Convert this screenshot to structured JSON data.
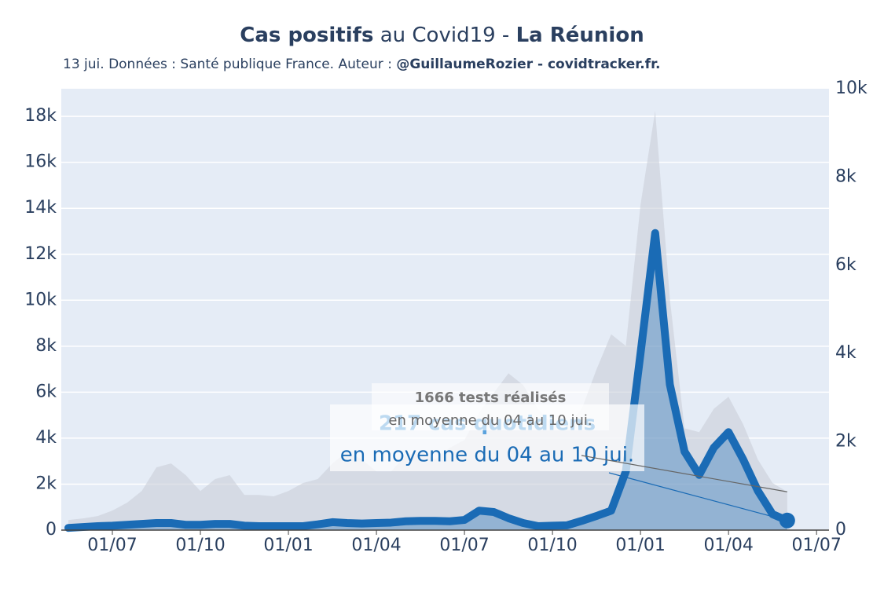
{
  "chart_data": {
    "type": "line",
    "title": [
      "Cas positifs",
      "au Covid19 -",
      "La Réunion"
    ],
    "subtitle": [
      "13 jui. Données : Santé publique France. Auteur :",
      "@GuillaumeRozier - covidtracker.fr."
    ],
    "categories": [
      null,
      null,
      null,
      "01/07",
      null,
      null,
      null,
      null,
      null,
      "01/10",
      null,
      null,
      null,
      null,
      null,
      "01/01",
      null,
      null,
      null,
      null,
      null,
      "01/04",
      null,
      null,
      null,
      null,
      null,
      "01/07",
      null,
      null,
      null,
      null,
      null,
      "01/10",
      null,
      null,
      null,
      null,
      null,
      "01/01",
      null,
      null,
      null,
      null,
      null,
      "01/04",
      null,
      null,
      null,
      null,
      null,
      "01/07"
    ],
    "series": [
      {
        "color": "#c9ced8",
        "axis": "y",
        "values": [
          440,
          510,
          610,
          850,
          1190,
          1700,
          2730,
          2900,
          2390,
          1700,
          2220,
          2390,
          1530,
          1530,
          1470,
          1700,
          2050,
          2220,
          2900,
          3410,
          3070,
          2560,
          2560,
          3240,
          3410,
          3070,
          3580,
          3920,
          5110,
          5970,
          6820,
          6310,
          5280,
          4600,
          4600,
          5280,
          6990,
          8520,
          8010,
          14150,
          18240,
          10060,
          4430,
          4260,
          5280,
          5800,
          4600,
          3070,
          2050,
          1666,
          null,
          null
        ]
      },
      {
        "color": "#1a6bb5",
        "axis": "y2",
        "values": [
          50,
          70,
          90,
          100,
          120,
          140,
          160,
          160,
          120,
          120,
          140,
          140,
          100,
          90,
          90,
          90,
          90,
          130,
          180,
          160,
          150,
          160,
          170,
          200,
          210,
          210,
          200,
          230,
          440,
          410,
          270,
          160,
          90,
          100,
          110,
          210,
          320,
          440,
          1330,
          4000,
          6730,
          3300,
          1780,
          1250,
          1870,
          2220,
          1600,
          890,
          360,
          217,
          null,
          null
        ]
      }
    ],
    "ylim": [
      0,
      19200
    ],
    "yticks": [
      0,
      {
        "value": 2000,
        "label": "2k"
      },
      {
        "value": 4000,
        "label": "4k"
      },
      {
        "value": 6000,
        "label": "6k"
      },
      {
        "value": 8000,
        "label": "8k"
      },
      {
        "value": 10000,
        "label": "10k"
      },
      {
        "value": 12000,
        "label": "12k"
      },
      {
        "value": 14000,
        "label": "14k"
      },
      {
        "value": 16000,
        "label": "16k"
      },
      {
        "value": 18000,
        "label": "18k"
      }
    ],
    "y2lim": [
      0,
      10000
    ],
    "y2ticks": [
      0,
      {
        "value": 2000,
        "label": "2k"
      },
      {
        "value": 4000,
        "label": "4k"
      },
      {
        "value": 6000,
        "label": "6k"
      },
      {
        "value": 8000,
        "label": "8k"
      },
      {
        "value": 10000,
        "label": "10k"
      }
    ],
    "grid": true,
    "annotations": [
      [
        "217 cas quotidiens",
        "en moyenne du 04 au 10 jui."
      ],
      [
        "1666 tests réalisés",
        "en moyenne du 04 au 10 jui."
      ]
    ]
  }
}
